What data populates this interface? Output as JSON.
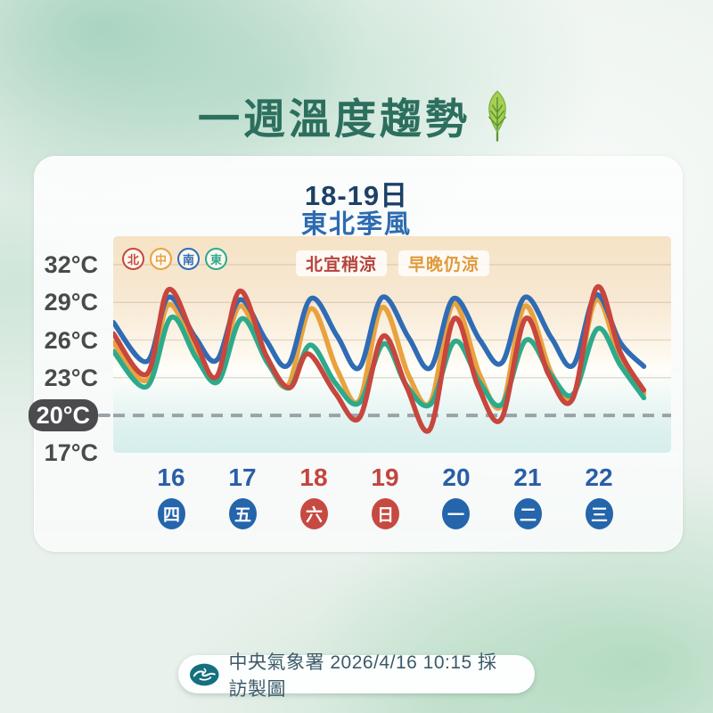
{
  "page": {
    "title": "一週溫度趨勢"
  },
  "icons": {
    "title_leaf": "leaf-icon",
    "footer_logo": "cwa-logo-icon"
  },
  "card": {
    "heading_line1": "18-19日",
    "heading_line2": "東北季風"
  },
  "footer": {
    "text": "中央氣象署 2026/4/16 10:15 採訪製圖"
  },
  "chart_data": {
    "type": "line",
    "title": "一週溫度趨勢",
    "subtitle": [
      "18-19日",
      "東北季風"
    ],
    "y_unit": "°C",
    "y_ticks": [
      32,
      29,
      26,
      23,
      20,
      17
    ],
    "y_tick_labels": [
      "32°C",
      "29°C",
      "26°C",
      "23°C",
      "20°C",
      "17°C"
    ],
    "highlighted_y_tick": "20°C",
    "grid": {
      "horizontal_lines": [
        32,
        29,
        26,
        23,
        20,
        17
      ]
    },
    "reference_line": {
      "value": 20,
      "style": "dashed",
      "color": "#9aa3a8"
    },
    "x_range_days": [
      -0.8125,
      7.0125
    ],
    "x_ticks": [
      {
        "date": "16",
        "weekday": "四",
        "color": "#2a5ea6",
        "badge_color": "#2465ab"
      },
      {
        "date": "17",
        "weekday": "五",
        "color": "#2a5ea6",
        "badge_color": "#2465ab"
      },
      {
        "date": "18",
        "weekday": "六",
        "color": "#c2453f",
        "badge_color": "#c64a42"
      },
      {
        "date": "19",
        "weekday": "日",
        "color": "#c2453f",
        "badge_color": "#c64a42"
      },
      {
        "date": "20",
        "weekday": "一",
        "color": "#2a5ea6",
        "badge_color": "#2465ab"
      },
      {
        "date": "21",
        "weekday": "二",
        "color": "#2a5ea6",
        "badge_color": "#2465ab"
      },
      {
        "date": "22",
        "weekday": "三",
        "color": "#2a5ea6",
        "badge_color": "#2465ab"
      }
    ],
    "legend": [
      {
        "label": "北",
        "region": "north",
        "color": "#c7463d"
      },
      {
        "label": "中",
        "region": "central",
        "color": "#e9a23e"
      },
      {
        "label": "南",
        "region": "south",
        "color": "#2f6cb5"
      },
      {
        "label": "東",
        "region": "east",
        "color": "#2daa8c"
      }
    ],
    "annotations": [
      {
        "text": "北宜稍涼",
        "color": "#b5433c",
        "x_day": 2.39
      },
      {
        "text": "早晚仍涼",
        "color": "#e09a3b",
        "x_day": 3.83
      }
    ],
    "draw_order": [
      "中",
      "東",
      "南",
      "北"
    ],
    "series": [
      {
        "name": "北",
        "region": "north",
        "color": "#c7463d",
        "points": [
          [
            -0.81,
            26.5
          ],
          [
            -0.34,
            23.3
          ],
          [
            -0.04,
            30.0
          ],
          [
            0.33,
            26.0
          ],
          [
            0.64,
            23.1
          ],
          [
            0.96,
            29.9
          ],
          [
            1.33,
            24.8
          ],
          [
            1.66,
            22.2
          ],
          [
            1.92,
            24.9
          ],
          [
            2.3,
            21.8
          ],
          [
            2.64,
            19.8
          ],
          [
            2.97,
            26.3
          ],
          [
            3.3,
            22.3
          ],
          [
            3.63,
            18.9
          ],
          [
            3.97,
            27.7
          ],
          [
            4.3,
            22.4
          ],
          [
            4.63,
            19.7
          ],
          [
            4.97,
            27.7
          ],
          [
            5.3,
            23.2
          ],
          [
            5.63,
            21.3
          ],
          [
            5.97,
            30.2
          ],
          [
            6.3,
            25.0
          ],
          [
            6.63,
            22.0
          ]
        ]
      },
      {
        "name": "中",
        "region": "central",
        "color": "#e9a23e",
        "points": [
          [
            -0.81,
            25.8
          ],
          [
            -0.34,
            22.8
          ],
          [
            -0.04,
            28.8
          ],
          [
            0.33,
            25.3
          ],
          [
            0.64,
            22.8
          ],
          [
            0.96,
            28.7
          ],
          [
            1.33,
            24.6
          ],
          [
            1.64,
            22.4
          ],
          [
            1.96,
            28.5
          ],
          [
            2.33,
            23.6
          ],
          [
            2.64,
            21.2
          ],
          [
            2.96,
            28.6
          ],
          [
            3.33,
            23.2
          ],
          [
            3.64,
            21.1
          ],
          [
            3.96,
            28.9
          ],
          [
            4.33,
            23.2
          ],
          [
            4.64,
            20.8
          ],
          [
            4.96,
            28.7
          ],
          [
            5.33,
            23.4
          ],
          [
            5.64,
            21.5
          ],
          [
            5.96,
            29.2
          ],
          [
            6.3,
            24.5
          ],
          [
            6.63,
            21.7
          ]
        ]
      },
      {
        "name": "南",
        "region": "south",
        "color": "#2f6cb5",
        "points": [
          [
            -0.81,
            27.4
          ],
          [
            -0.34,
            24.3
          ],
          [
            -0.04,
            29.4
          ],
          [
            0.33,
            26.3
          ],
          [
            0.64,
            24.4
          ],
          [
            0.96,
            29.2
          ],
          [
            1.33,
            26.0
          ],
          [
            1.64,
            24.0
          ],
          [
            1.96,
            29.3
          ],
          [
            2.33,
            26.3
          ],
          [
            2.64,
            23.8
          ],
          [
            2.96,
            29.4
          ],
          [
            3.33,
            26.2
          ],
          [
            3.64,
            23.8
          ],
          [
            3.96,
            29.3
          ],
          [
            4.33,
            26.0
          ],
          [
            4.64,
            24.2
          ],
          [
            4.96,
            29.4
          ],
          [
            5.33,
            26.2
          ],
          [
            5.64,
            24.0
          ],
          [
            5.96,
            29.6
          ],
          [
            6.3,
            25.8
          ],
          [
            6.63,
            23.9
          ]
        ]
      },
      {
        "name": "東",
        "region": "east",
        "color": "#2daa8c",
        "points": [
          [
            -0.81,
            25.1
          ],
          [
            -0.34,
            22.3
          ],
          [
            0.0,
            27.8
          ],
          [
            0.35,
            24.6
          ],
          [
            0.66,
            22.7
          ],
          [
            0.99,
            27.7
          ],
          [
            1.35,
            24.2
          ],
          [
            1.66,
            22.2
          ],
          [
            1.95,
            25.6
          ],
          [
            2.3,
            22.6
          ],
          [
            2.64,
            21.0
          ],
          [
            2.98,
            25.7
          ],
          [
            3.3,
            22.4
          ],
          [
            3.64,
            20.9
          ],
          [
            3.98,
            25.9
          ],
          [
            4.33,
            22.6
          ],
          [
            4.64,
            20.9
          ],
          [
            4.98,
            26.0
          ],
          [
            5.33,
            23.2
          ],
          [
            5.64,
            21.7
          ],
          [
            5.98,
            26.9
          ],
          [
            6.3,
            24.0
          ],
          [
            6.63,
            21.4
          ]
        ]
      }
    ]
  }
}
